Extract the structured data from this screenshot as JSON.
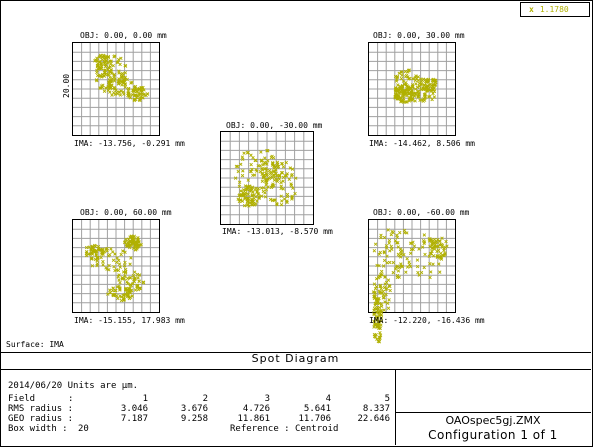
{
  "legend": {
    "marker": "x",
    "label": "1.1780",
    "color": "#b0b000"
  },
  "surface_label": "Surface: IMA",
  "diagram_title": "Spot Diagram",
  "box_width_label": "20.00",
  "spots": [
    {
      "obj": "OBJ: 0.00, 0.00 mm",
      "ima": "IMA: -13.756, -0.291 mm"
    },
    {
      "obj": "OBJ: 0.00, 30.00 mm",
      "ima": "IMA: -14.462, 8.506 mm"
    },
    {
      "obj": "OBJ: 0.00, -30.00 mm",
      "ima": "IMA: -13.013, -8.570 mm"
    },
    {
      "obj": "OBJ: 0.00, 60.00 mm",
      "ima": "IMA: -15.155, 17.983 mm"
    },
    {
      "obj": "OBJ: 0.00, -60.00 mm",
      "ima": "IMA: -12.220, -16.436 mm"
    }
  ],
  "info": {
    "date_units": "2014/06/20  Units are µm.",
    "field_label": "Field",
    "fields": [
      "1",
      "2",
      "3",
      "4",
      "5"
    ],
    "rms_label": "RMS radius :",
    "rms": [
      "3.046",
      "3.676",
      "4.726",
      "5.641",
      "8.337"
    ],
    "geo_label": "GEO radius :",
    "geo": [
      "7.187",
      "9.258",
      "11.861",
      "11.706",
      "22.646"
    ],
    "box_label": "Box width  :",
    "box_value": "20",
    "reference": "Reference   : Centroid"
  },
  "file_name": "OAOspec5gj.ZMX",
  "configuration": "Configuration 1 of 1"
}
